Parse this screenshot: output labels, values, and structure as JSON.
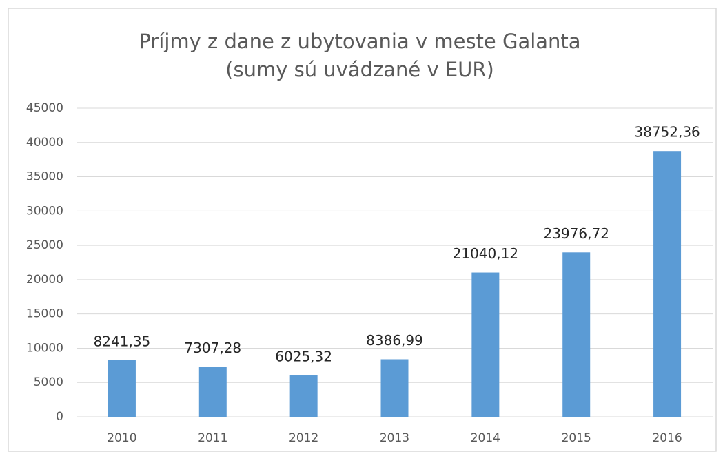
{
  "chart_data": {
    "type": "bar",
    "title": "Príjmy z dane z ubytovania v meste Galanta",
    "subtitle": "(sumy sú uvádzané v EUR)",
    "categories": [
      "2010",
      "2011",
      "2012",
      "2013",
      "2014",
      "2015",
      "2016"
    ],
    "values": [
      8241.35,
      7307.28,
      6025.32,
      8386.99,
      21040.12,
      23976.72,
      38752.36
    ],
    "value_labels": [
      "8241,35",
      "7307,28",
      "6025,32",
      "8386,99",
      "21040,12",
      "23976,72",
      "38752,36"
    ],
    "color": "#5b9bd5",
    "ylim": [
      0,
      45000
    ],
    "yticks": [
      0,
      5000,
      10000,
      15000,
      20000,
      25000,
      30000,
      35000,
      40000,
      45000
    ],
    "grid": true
  }
}
